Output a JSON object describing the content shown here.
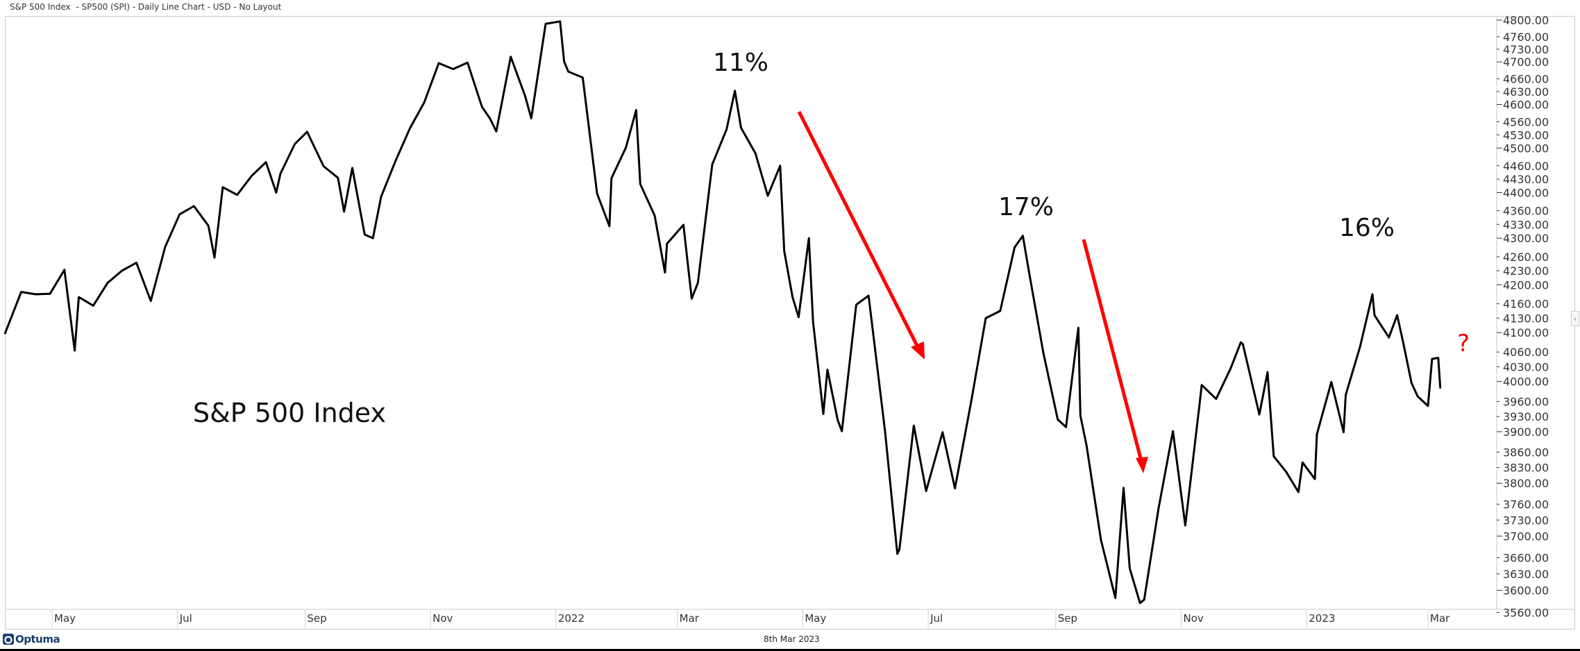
{
  "header": {
    "title": "S&P 500 Index  - SP500 (SPI) - Daily Line Chart - USD - No Layout"
  },
  "footer": {
    "date": "8th Mar 2023",
    "logo_text": "Optuma"
  },
  "collapse_glyph": "‹",
  "chart_data": {
    "type": "line",
    "title": "S&P 500 Index  - SP500 (SPI) - Daily Line Chart - USD - No Layout",
    "y_scale": "log",
    "ylim": [
      3545,
      4810
    ],
    "grid": false,
    "line_color": "#000000",
    "annotation_color": "#ff0000",
    "x_tick_labels": [
      {
        "date": "2021-05-01",
        "label": "May"
      },
      {
        "date": "2021-07-01",
        "label": "Jul"
      },
      {
        "date": "2021-09-01",
        "label": "Sep"
      },
      {
        "date": "2021-11-01",
        "label": "Nov"
      },
      {
        "date": "2022-01-01",
        "label": "2022"
      },
      {
        "date": "2022-03-01",
        "label": "Mar"
      },
      {
        "date": "2022-05-01",
        "label": "May"
      },
      {
        "date": "2022-07-01",
        "label": "Jul"
      },
      {
        "date": "2022-09-01",
        "label": "Sep"
      },
      {
        "date": "2022-11-01",
        "label": "Nov"
      },
      {
        "date": "2023-01-01",
        "label": "2023"
      },
      {
        "date": "2023-03-01",
        "label": "Mar"
      }
    ],
    "y_tick_labels": [
      "4800.00",
      "4760.00",
      "4730.00",
      "4700.00",
      "4660.00",
      "4630.00",
      "4600.00",
      "4560.00",
      "4530.00",
      "4500.00",
      "4460.00",
      "4430.00",
      "4400.00",
      "4360.00",
      "4330.00",
      "4300.00",
      "4260.00",
      "4230.00",
      "4200.00",
      "4160.00",
      "4130.00",
      "4100.00",
      "4060.00",
      "4030.00",
      "4000.00",
      "3960.00",
      "3930.00",
      "3900.00",
      "3860.00",
      "3830.00",
      "3800.00",
      "3760.00",
      "3730.00",
      "3700.00",
      "3660.00",
      "3630.00",
      "3600.00",
      "3560.00"
    ],
    "series": [
      {
        "x": [
          "2021-04-08",
          "2021-04-16",
          "2021-04-23",
          "2021-04-30",
          "2021-05-07",
          "2021-05-12",
          "2021-05-14",
          "2021-05-21",
          "2021-05-28",
          "2021-06-04",
          "2021-06-11",
          "2021-06-18",
          "2021-06-25",
          "2021-07-02",
          "2021-07-09",
          "2021-07-16",
          "2021-07-19",
          "2021-07-23",
          "2021-07-30",
          "2021-08-06",
          "2021-08-13",
          "2021-08-18",
          "2021-08-20",
          "2021-08-27",
          "2021-09-02",
          "2021-09-10",
          "2021-09-17",
          "2021-09-20",
          "2021-09-24",
          "2021-09-30",
          "2021-10-04",
          "2021-10-08",
          "2021-10-15",
          "2021-10-22",
          "2021-10-29",
          "2021-11-05",
          "2021-11-12",
          "2021-11-19",
          "2021-11-26",
          "2021-11-30",
          "2021-12-03",
          "2021-12-10",
          "2021-12-17",
          "2021-12-20",
          "2021-12-27",
          "2022-01-03",
          "2022-01-05",
          "2022-01-07",
          "2022-01-14",
          "2022-01-21",
          "2022-01-27",
          "2022-01-28",
          "2022-02-04",
          "2022-02-09",
          "2022-02-11",
          "2022-02-18",
          "2022-02-23",
          "2022-02-24",
          "2022-03-04",
          "2022-03-08",
          "2022-03-11",
          "2022-03-18",
          "2022-03-25",
          "2022-03-29",
          "2022-04-01",
          "2022-04-08",
          "2022-04-14",
          "2022-04-20",
          "2022-04-22",
          "2022-04-26",
          "2022-04-29",
          "2022-05-04",
          "2022-05-06",
          "2022-05-11",
          "2022-05-13",
          "2022-05-18",
          "2022-05-20",
          "2022-05-27",
          "2022-06-02",
          "2022-06-10",
          "2022-06-16",
          "2022-06-17",
          "2022-06-24",
          "2022-06-30",
          "2022-07-08",
          "2022-07-14",
          "2022-07-22",
          "2022-07-29",
          "2022-08-05",
          "2022-08-12",
          "2022-08-16",
          "2022-08-19",
          "2022-08-26",
          "2022-09-02",
          "2022-09-06",
          "2022-09-12",
          "2022-09-13",
          "2022-09-16",
          "2022-09-23",
          "2022-09-30",
          "2022-10-04",
          "2022-10-07",
          "2022-10-12",
          "2022-10-14",
          "2022-10-21",
          "2022-10-28",
          "2022-11-03",
          "2022-11-10",
          "2022-11-11",
          "2022-11-18",
          "2022-11-25",
          "2022-11-30",
          "2022-12-01",
          "2022-12-09",
          "2022-12-13",
          "2022-12-16",
          "2022-12-22",
          "2022-12-28",
          "2022-12-30",
          "2023-01-05",
          "2023-01-06",
          "2023-01-13",
          "2023-01-19",
          "2023-01-20",
          "2023-01-27",
          "2023-02-02",
          "2023-02-03",
          "2023-02-10",
          "2023-02-14",
          "2023-02-17",
          "2023-02-21",
          "2023-02-24",
          "2023-03-01",
          "2023-03-03",
          "2023-03-06",
          "2023-03-07"
        ],
        "y": [
          4097,
          4185,
          4180,
          4181,
          4232,
          4063,
          4174,
          4156,
          4204,
          4230,
          4247,
          4166,
          4281,
          4352,
          4370,
          4327,
          4258,
          4412,
          4395,
          4437,
          4468,
          4400,
          4442,
          4509,
          4537,
          4459,
          4433,
          4358,
          4455,
          4308,
          4300,
          4391,
          4471,
          4545,
          4605,
          4697,
          4683,
          4698,
          4595,
          4567,
          4538,
          4712,
          4620,
          4568,
          4791,
          4797,
          4700,
          4677,
          4663,
          4398,
          4326,
          4432,
          4501,
          4587,
          4419,
          4349,
          4226,
          4288,
          4329,
          4171,
          4204,
          4463,
          4543,
          4632,
          4546,
          4488,
          4393,
          4460,
          4272,
          4175,
          4132,
          4300,
          4123,
          3935,
          4024,
          3923,
          3901,
          4158,
          4177,
          3901,
          3667,
          3675,
          3912,
          3785,
          3899,
          3790,
          3962,
          4130,
          4145,
          4280,
          4305,
          4228,
          4058,
          3924,
          3909,
          4110,
          3932,
          3873,
          3693,
          3586,
          3791,
          3640,
          3577,
          3583,
          3752,
          3901,
          3720,
          3956,
          3993,
          3965,
          4026,
          4080,
          4076,
          3934,
          4019,
          3852,
          3822,
          3783,
          3840,
          3808,
          3895,
          3999,
          3899,
          3973,
          4071,
          4180,
          4136,
          4090,
          4136,
          4079,
          3997,
          3970,
          3951,
          4046,
          4048,
          3986
        ]
      }
    ],
    "annotations": {
      "series_label": "S&P 500 Index",
      "peak1": "11%",
      "peak2": "17%",
      "peak3": "16%",
      "question": "?"
    }
  }
}
